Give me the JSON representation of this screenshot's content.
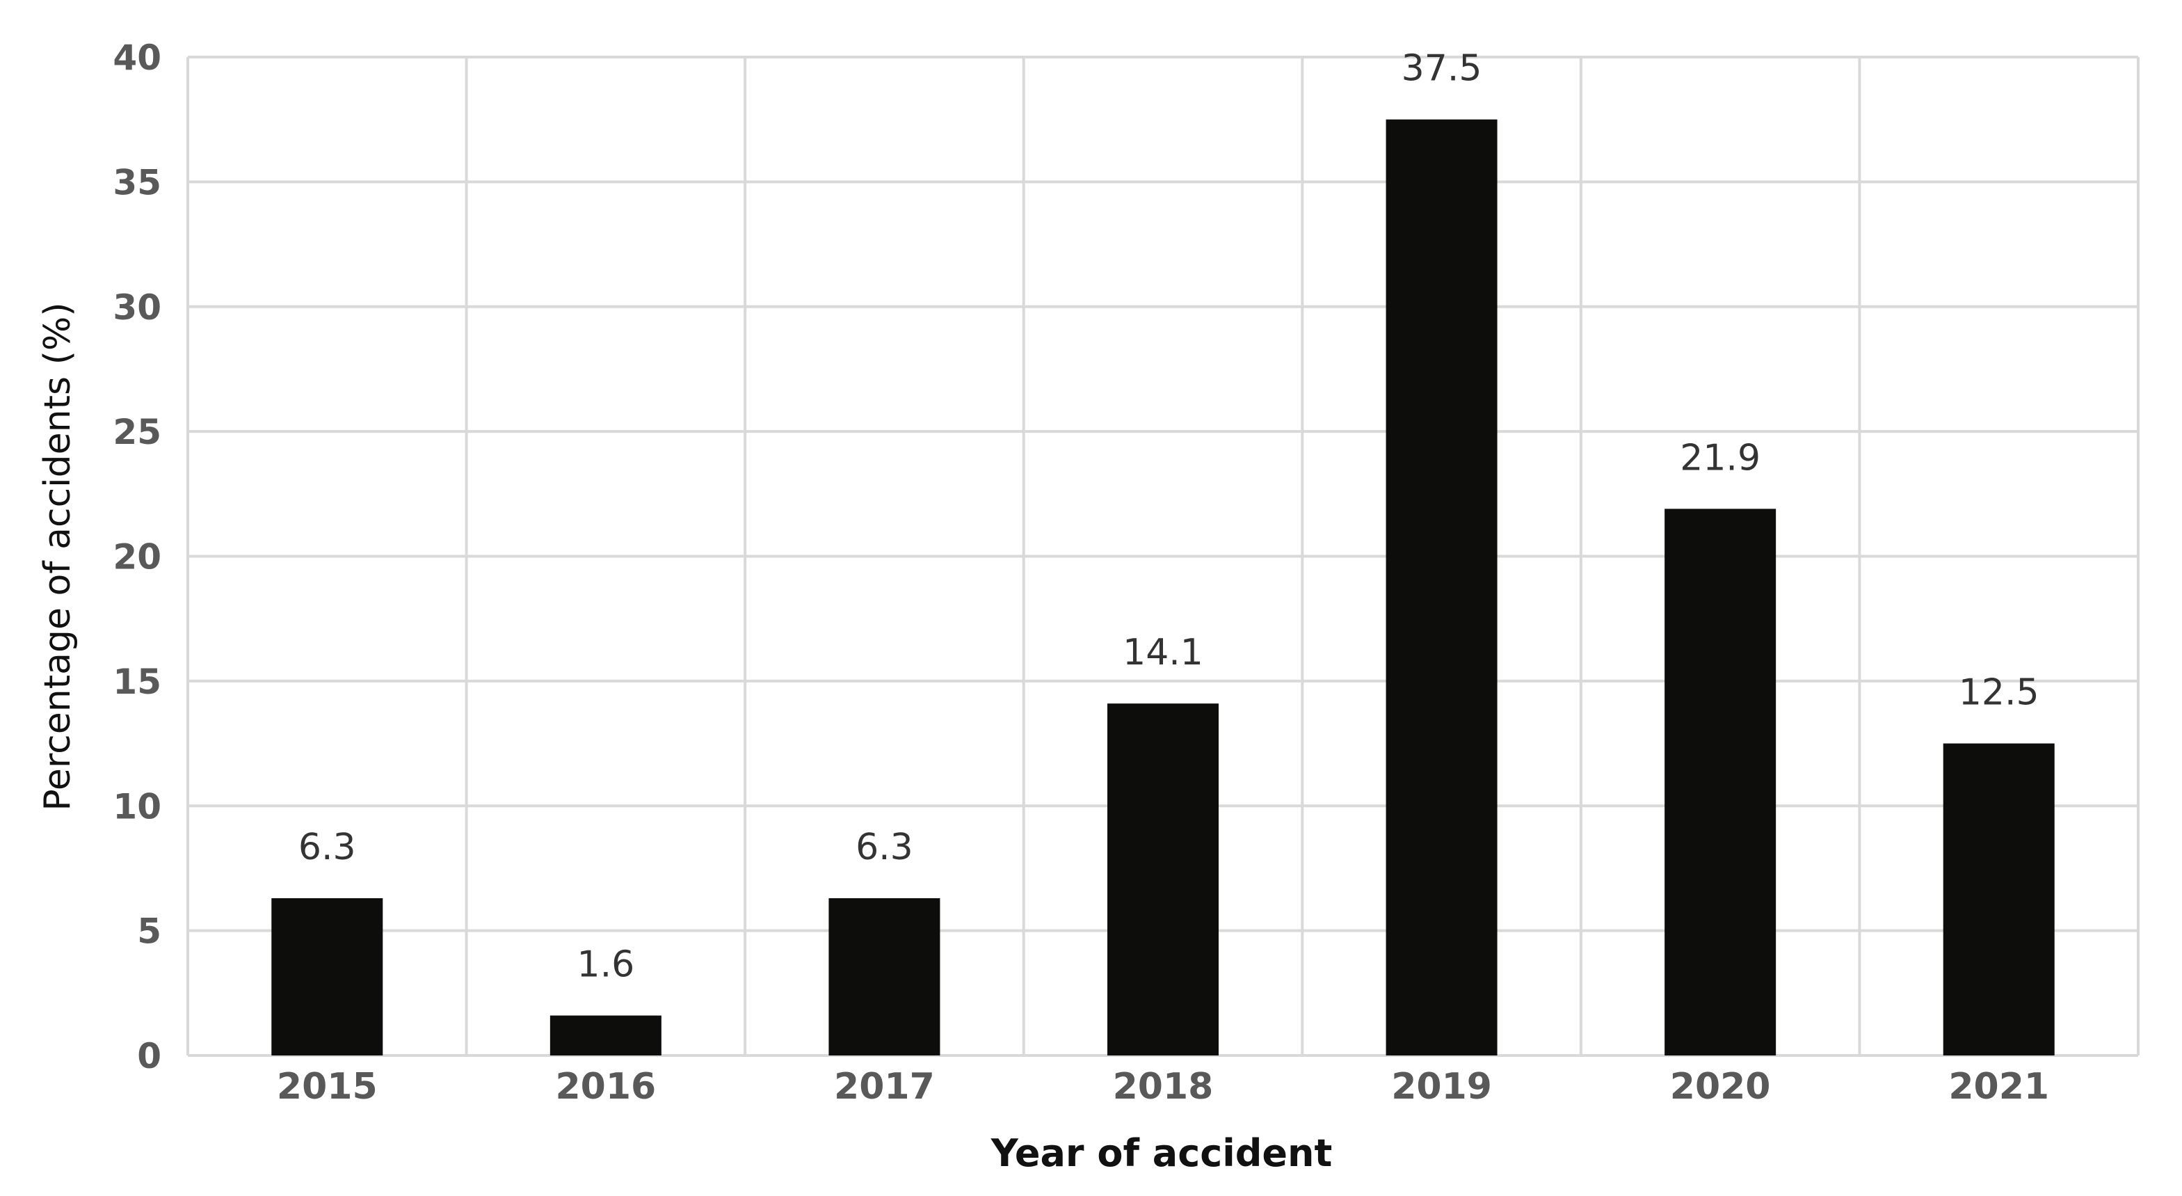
{
  "chart_data": {
    "type": "bar",
    "title": "",
    "xlabel": "Year of accident",
    "ylabel": "Percentage of accidents (%)",
    "categories": [
      "2015",
      "2016",
      "2017",
      "2018",
      "2019",
      "2020",
      "2021"
    ],
    "values": [
      6.3,
      1.6,
      6.3,
      14.1,
      37.5,
      21.9,
      12.5
    ],
    "data_labels": [
      "6.3",
      "1.6",
      "6.3",
      "14.1",
      "37.5",
      "21.9",
      "12.5"
    ],
    "ylim": [
      0,
      40
    ],
    "yticks": [
      0,
      5,
      10,
      15,
      20,
      25,
      30,
      35,
      40
    ],
    "grid": true,
    "vertical_grid": true,
    "legend": "none",
    "colors": {
      "bar": "#0d0d0b",
      "grid": "#d9d9d9",
      "tick_text": "#595959",
      "label_text": "#111111",
      "data_label_text": "#333333"
    }
  }
}
